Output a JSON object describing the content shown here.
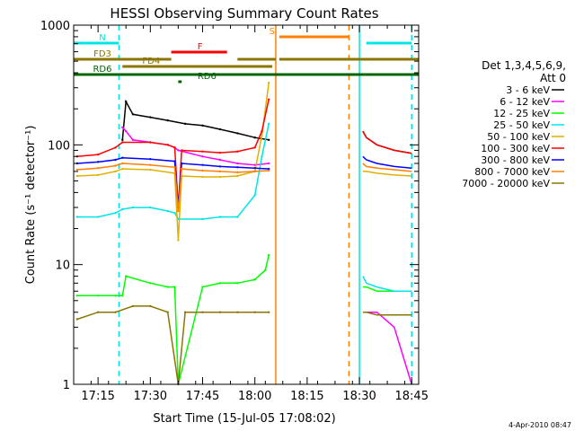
{
  "chart_data": {
    "type": "line",
    "title": "HESSI Observing Summary Count Rates",
    "xlabel": "Start Time (15-Jul-05 17:08:02)",
    "ylabel": "Count Rate (s⁻¹ detector⁻¹)",
    "yscale": "log",
    "xlim": [
      "17:08",
      "18:47"
    ],
    "ylim": [
      1,
      1000
    ],
    "x_ticks": [
      "17:15",
      "17:30",
      "17:45",
      "18:00",
      "18:15",
      "18:30",
      "18:45"
    ],
    "y_ticks": [
      "1",
      "10",
      "100",
      "1000"
    ],
    "grid": false,
    "legend_position": "right",
    "legend_title": [
      "Det 1,3,4,5,6,9,",
      "Att 0"
    ],
    "timestamp": "4-Apr-2010 08:47",
    "series": [
      {
        "name": "3 - 6 keV",
        "color": "#000000",
        "x": [
          "17:22",
          "17:23",
          "17:25",
          "17:30",
          "17:35",
          "17:40",
          "17:45",
          "17:50",
          "17:55",
          "18:00",
          "18:04"
        ],
        "y": [
          110,
          230,
          180,
          170,
          160,
          150,
          145,
          135,
          125,
          115,
          110
        ]
      },
      {
        "name": "6 - 12 keV",
        "color": "#ff00ff",
        "x": [
          "17:22",
          "17:23",
          "17:25",
          "17:30",
          "17:35",
          "17:37",
          "17:38",
          "17:45",
          "17:50",
          "17:55",
          "18:00",
          "18:04"
        ],
        "y": [
          140,
          130,
          110,
          105,
          100,
          95,
          90,
          80,
          75,
          70,
          68,
          70
        ]
      },
      {
        "name": "12 - 25 keV",
        "color": "#00ff00",
        "x": [
          "17:09",
          "17:15",
          "17:20",
          "17:22",
          "17:23",
          "17:30",
          "17:35",
          "17:37",
          "17:38",
          "17:45",
          "17:50",
          "17:55",
          "18:00",
          "18:03",
          "18:04"
        ],
        "y": [
          5.5,
          5.5,
          5.5,
          5.5,
          8,
          7,
          6.5,
          6.5,
          1,
          6.5,
          7,
          7,
          7.5,
          9,
          12
        ]
      },
      {
        "name": "25 - 50 keV",
        "color": "#00e5e5",
        "x": [
          "17:09",
          "17:15",
          "17:20",
          "17:22",
          "17:25",
          "17:30",
          "17:35",
          "17:37",
          "17:38",
          "17:45",
          "17:50",
          "17:55",
          "18:00",
          "18:02",
          "18:04"
        ],
        "y": [
          25,
          25,
          27,
          29,
          30,
          30,
          28,
          27,
          24,
          24,
          25,
          25,
          38,
          80,
          150
        ]
      },
      {
        "name": "50 - 100 keV",
        "color": "#e0b000",
        "x": [
          "17:09",
          "17:15",
          "17:20",
          "17:22",
          "17:30",
          "17:37",
          "17:38",
          "17:39",
          "17:45",
          "17:50",
          "17:55",
          "18:00",
          "18:02",
          "18:04"
        ],
        "y": [
          55,
          56,
          60,
          63,
          62,
          58,
          16,
          55,
          54,
          54,
          55,
          60,
          120,
          330
        ]
      },
      {
        "name": "100 - 300 keV",
        "color": "#ff0000",
        "x": [
          "17:09",
          "17:15",
          "17:20",
          "17:22",
          "17:30",
          "17:35",
          "17:37",
          "17:38",
          "17:39",
          "17:45",
          "17:50",
          "17:55",
          "18:00",
          "18:02",
          "18:04"
        ],
        "y": [
          80,
          83,
          95,
          105,
          105,
          100,
          95,
          30,
          90,
          88,
          86,
          88,
          95,
          130,
          240
        ]
      },
      {
        "name": "300 - 800 keV",
        "color": "#0000ff",
        "x": [
          "17:09",
          "17:15",
          "17:20",
          "17:22",
          "17:30",
          "17:37",
          "17:38",
          "17:39",
          "17:45",
          "17:50",
          "17:55",
          "18:00",
          "18:04"
        ],
        "y": [
          70,
          72,
          75,
          78,
          76,
          73,
          30,
          70,
          68,
          66,
          65,
          64,
          63
        ]
      },
      {
        "name": "800 - 7000 keV",
        "color": "#ff7f00",
        "x": [
          "17:09",
          "17:15",
          "17:20",
          "17:22",
          "17:30",
          "17:37",
          "17:38",
          "17:39",
          "17:45",
          "17:50",
          "17:55",
          "18:00",
          "18:04"
        ],
        "y": [
          62,
          64,
          67,
          70,
          68,
          65,
          28,
          63,
          61,
          60,
          59,
          60,
          61
        ]
      },
      {
        "name": "7000 - 20000 keV",
        "color": "#8b7500",
        "x": [
          "17:09",
          "17:15",
          "17:20",
          "17:25",
          "17:30",
          "17:35",
          "17:38",
          "17:40",
          "17:45",
          "17:50",
          "17:55",
          "18:00",
          "18:04"
        ],
        "y": [
          3.5,
          4,
          4,
          4.5,
          4.5,
          4,
          1,
          4,
          4,
          4,
          4,
          4,
          4
        ]
      }
    ],
    "segments_after_gap": {
      "x": [
        "18:31",
        "18:32",
        "18:35",
        "18:40",
        "18:45"
      ],
      "series": [
        {
          "name": "3 - 6 keV",
          "y": [
            130,
            115,
            100,
            90,
            85
          ]
        },
        {
          "name": "6 - 12 keV",
          "y": [
            4,
            4,
            4,
            3,
            1
          ]
        },
        {
          "name": "12 - 25 keV",
          "y": [
            6.5,
            6.5,
            6,
            6,
            6
          ]
        },
        {
          "name": "25 - 50 keV",
          "y": [
            8,
            7,
            6.5,
            6,
            6
          ]
        },
        {
          "name": "50 - 100 keV",
          "y": [
            60,
            60,
            58,
            56,
            55
          ]
        },
        {
          "name": "100 - 300 keV",
          "y": [
            130,
            115,
            100,
            90,
            85
          ]
        },
        {
          "name": "300 - 800 keV",
          "y": [
            80,
            75,
            70,
            66,
            64
          ]
        },
        {
          "name": "800 - 7000 keV",
          "y": [
            70,
            66,
            64,
            62,
            60
          ]
        },
        {
          "name": "7000 - 20000 keV",
          "y": [
            4,
            4,
            3.8,
            3.8,
            3.8
          ]
        }
      ]
    },
    "flag_bars": [
      {
        "label": "N",
        "color": "#00e5e5",
        "segments": [
          [
            "17:08",
            "17:21"
          ],
          [
            "18:32",
            "18:45"
          ]
        ]
      },
      {
        "label": "S",
        "color": "#ff7f00",
        "segments": [
          [
            "18:07",
            "18:27"
          ]
        ]
      },
      {
        "label": "F",
        "color": "#ff0000",
        "segments": [
          [
            "17:36",
            "17:52"
          ]
        ]
      },
      {
        "label": "FD3",
        "color": "#8b7500",
        "segments": [
          [
            "17:08",
            "17:36"
          ],
          [
            "17:55",
            "18:06"
          ],
          [
            "18:07",
            "18:47"
          ]
        ]
      },
      {
        "label": "FD4",
        "color": "#8b7500",
        "segments": [
          [
            "17:22",
            "18:05"
          ]
        ]
      },
      {
        "label": "RD6",
        "color": "#006400",
        "segments": [
          [
            "17:08",
            "18:47"
          ],
          [
            "17:38",
            "17:39"
          ]
        ]
      },
      {
        "label": "RD6",
        "color": "#006400",
        "segments": [
          [
            "17:38",
            "17:39"
          ]
        ]
      }
    ],
    "vertical_markers": [
      {
        "x": "17:21",
        "color": "#00e5e5",
        "style": "dashed"
      },
      {
        "x": "18:06",
        "color": "#ff7f00",
        "style": "solid"
      },
      {
        "x": "18:27",
        "color": "#ff7f00",
        "style": "dashed"
      },
      {
        "x": "18:30",
        "color": "#00e5e5",
        "style": "solid"
      },
      {
        "x": "18:45",
        "color": "#00e5e5",
        "style": "dashed"
      }
    ]
  }
}
